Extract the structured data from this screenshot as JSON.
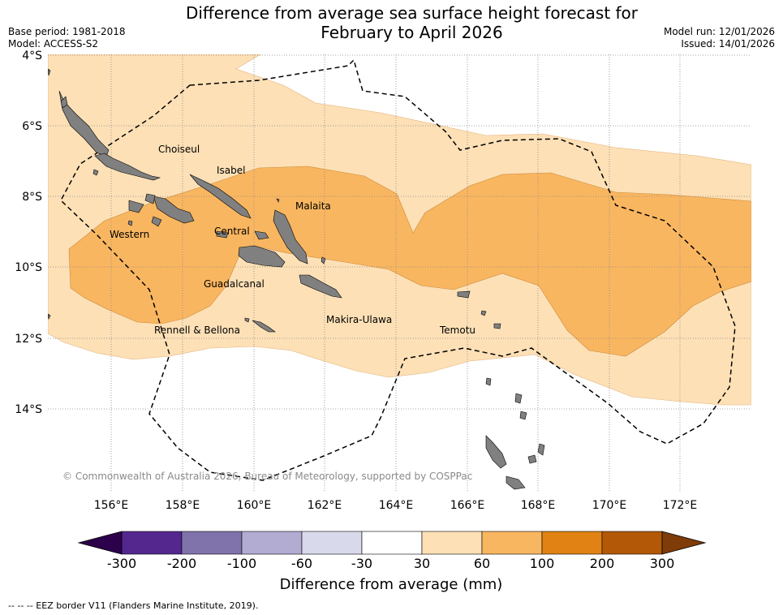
{
  "header": {
    "title_line1": "Difference from average sea surface height forecast for",
    "title_line2": "February to April 2026",
    "base_period": "Base period: 1981-2018",
    "model": "Model: ACCESS-S2",
    "model_run": "Model run: 12/01/2026",
    "issued": "Issued: 14/01/2026"
  },
  "map": {
    "lat_labels": [
      "4°S",
      "6°S",
      "8°S",
      "10°S",
      "12°S",
      "14°S"
    ],
    "lon_labels": [
      "156°E",
      "158°E",
      "160°E",
      "162°E",
      "164°E",
      "166°E",
      "168°E",
      "170°E",
      "172°E"
    ],
    "regions": [
      "Choiseul",
      "Isabel",
      "Malaita",
      "Western",
      "Central",
      "Guadalcanal",
      "Rennell & Bellona",
      "Makira-Ulawa",
      "Temotu"
    ],
    "copyright": "© Commonwealth of Australia 2026, Bureau of Meteorology, supported by COSPPac",
    "colors": {
      "band_30_60": "#fde0b6",
      "band_60_100": "#f9b660",
      "land": "#808080",
      "grid": "#888888"
    }
  },
  "colorbar": {
    "ticks": [
      "-300",
      "-200",
      "-100",
      "-60",
      "-30",
      "30",
      "60",
      "100",
      "200",
      "300"
    ],
    "colors": [
      "#54278f",
      "#8073ac",
      "#b2abd2",
      "#d8daeb",
      "#ffffff",
      "#fde0b6",
      "#f9b660",
      "#e08214",
      "#b35806"
    ],
    "under_color": "#2d004b",
    "over_color": "#7f3b08",
    "title": "Difference from average (mm)"
  },
  "footer": {
    "eez_note": "--  --  -- EEZ border V11 (Flanders Marine Institute, 2019)."
  }
}
